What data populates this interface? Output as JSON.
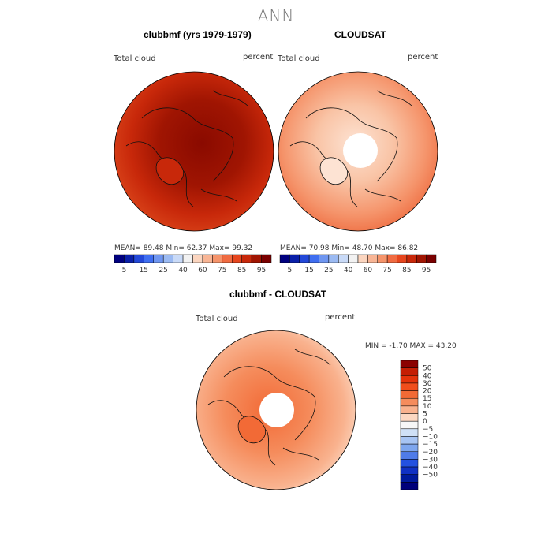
{
  "main_title": "ANN",
  "panels": [
    {
      "title": "clubbmf (yrs 1979-1979)",
      "var_label": "Total cloud",
      "units": "percent",
      "stats": "MEAN=   89.48   Min=   62.37   Max=   99.32"
    },
    {
      "title": "CLOUDSAT",
      "var_label": "Total cloud",
      "units": "percent",
      "stats": "MEAN=   70.98   Min=   48.70   Max=   86.82"
    }
  ],
  "diff": {
    "title": "clubbmf - CLOUDSAT",
    "var_label": "Total cloud",
    "units": "percent",
    "minmax": "MIN =   -1.70 MAX =   43.20"
  },
  "colorbar_top": {
    "labels": [
      "5",
      "15",
      "25",
      "40",
      "60",
      "75",
      "85",
      "95"
    ],
    "colors": [
      "#00007f",
      "#0a1fa8",
      "#2348d8",
      "#3f6ef0",
      "#6f96f0",
      "#9bbaf2",
      "#c9daf7",
      "#f2f2f2",
      "#fbd5bf",
      "#f8b595",
      "#f5946b",
      "#f06b41",
      "#e6461e",
      "#c8280a",
      "#a01502",
      "#7a0000"
    ]
  },
  "colorbar_diff": {
    "labels": [
      "50",
      "40",
      "30",
      "20",
      "15",
      "10",
      "5",
      "0",
      "−5",
      "−10",
      "−15",
      "−20",
      "−30",
      "−40",
      "−50"
    ],
    "colors": [
      "#8b0000",
      "#c41e04",
      "#e3330b",
      "#f04e1c",
      "#f26a36",
      "#f58c5c",
      "#f9b28e",
      "#fcd8c2",
      "#f7f7f7",
      "#cfe0f6",
      "#a7c4f3",
      "#7ea6ee",
      "#4f7be8",
      "#2351e0",
      "#1031c4",
      "#001a9c",
      "#00007a"
    ]
  }
}
